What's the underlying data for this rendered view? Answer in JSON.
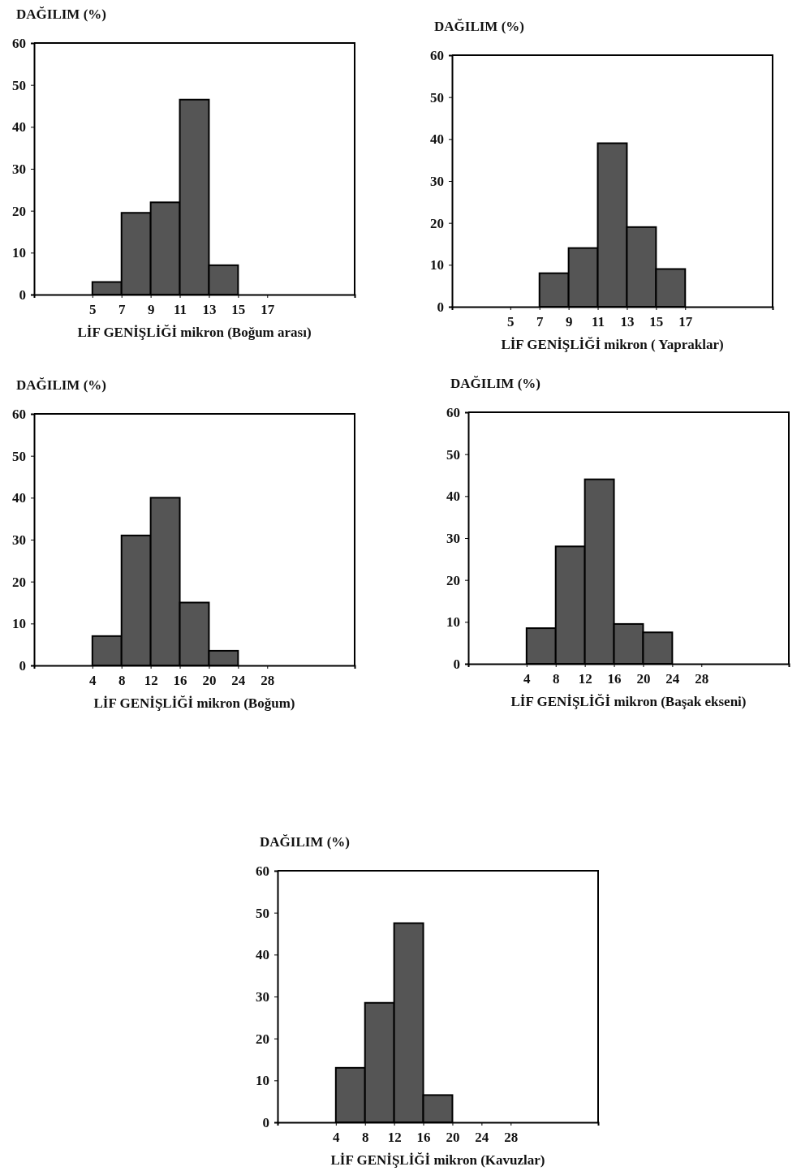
{
  "chart_data": [
    {
      "type": "histogram",
      "ylabel": "DAĞILIM (%)",
      "xlabel": "LİF GENİŞLİĞİ mikron (Boğum arası)",
      "bins": [
        5,
        7,
        9,
        11,
        13,
        15
      ],
      "values": [
        3,
        19.5,
        22,
        46.5,
        7
      ],
      "color": "#555555",
      "xlim": [
        1,
        23
      ],
      "xticks": [
        5,
        7,
        9,
        11,
        13,
        15,
        17
      ],
      "ylim": [
        0,
        60
      ],
      "yticks": [
        0,
        10,
        20,
        30,
        40,
        50,
        60
      ]
    },
    {
      "type": "histogram",
      "ylabel": "DAĞILIM (%)",
      "xlabel": "LİF GENİŞLİĞİ mikron ( Yapraklar)",
      "bins": [
        7,
        9,
        11,
        13,
        15,
        17
      ],
      "values": [
        8,
        14,
        39,
        19,
        9
      ],
      "color": "#555555",
      "xlim": [
        1,
        23
      ],
      "xticks": [
        5,
        7,
        9,
        11,
        13,
        15,
        17
      ],
      "ylim": [
        0,
        60
      ],
      "yticks": [
        0,
        10,
        20,
        30,
        40,
        50,
        60
      ]
    },
    {
      "type": "histogram",
      "ylabel": "DAĞILIM (%)",
      "xlabel": "LİF GENİŞLİĞİ mikron  (Boğum)",
      "bins": [
        4,
        8,
        12,
        16,
        20,
        24
      ],
      "values": [
        7,
        31,
        40,
        15,
        3.5
      ],
      "color": "#555555",
      "xlim": [
        -4,
        40
      ],
      "xticks": [
        4,
        8,
        12,
        16,
        20,
        24,
        28
      ],
      "ylim": [
        0,
        60
      ],
      "yticks": [
        0,
        10,
        20,
        30,
        40,
        50,
        60
      ]
    },
    {
      "type": "histogram",
      "ylabel": "DAĞILIM (%)",
      "xlabel": "LİF GENİŞLİĞİ mikron  (Başak ekseni)",
      "bins": [
        4,
        8,
        12,
        16,
        20,
        24
      ],
      "values": [
        8.5,
        28,
        44,
        9.5,
        7.5
      ],
      "color": "#555555",
      "xlim": [
        -4,
        40
      ],
      "xticks": [
        4,
        8,
        12,
        16,
        20,
        24,
        28
      ],
      "ylim": [
        0,
        60
      ],
      "yticks": [
        0,
        10,
        20,
        30,
        40,
        50,
        60
      ]
    },
    {
      "type": "histogram",
      "ylabel": "DAĞILIM (%)",
      "xlabel": "LİF GENİŞLİĞİ mikron  (Kavuzlar)",
      "bins": [
        4,
        8,
        12,
        16,
        20
      ],
      "values": [
        13,
        28.5,
        47.5,
        6.5
      ],
      "color": "#555555",
      "xlim": [
        -4,
        40
      ],
      "xticks": [
        4,
        8,
        12,
        16,
        20,
        24,
        28
      ],
      "ylim": [
        0,
        60
      ],
      "yticks": [
        0,
        10,
        20,
        30,
        40,
        50,
        60
      ]
    }
  ]
}
